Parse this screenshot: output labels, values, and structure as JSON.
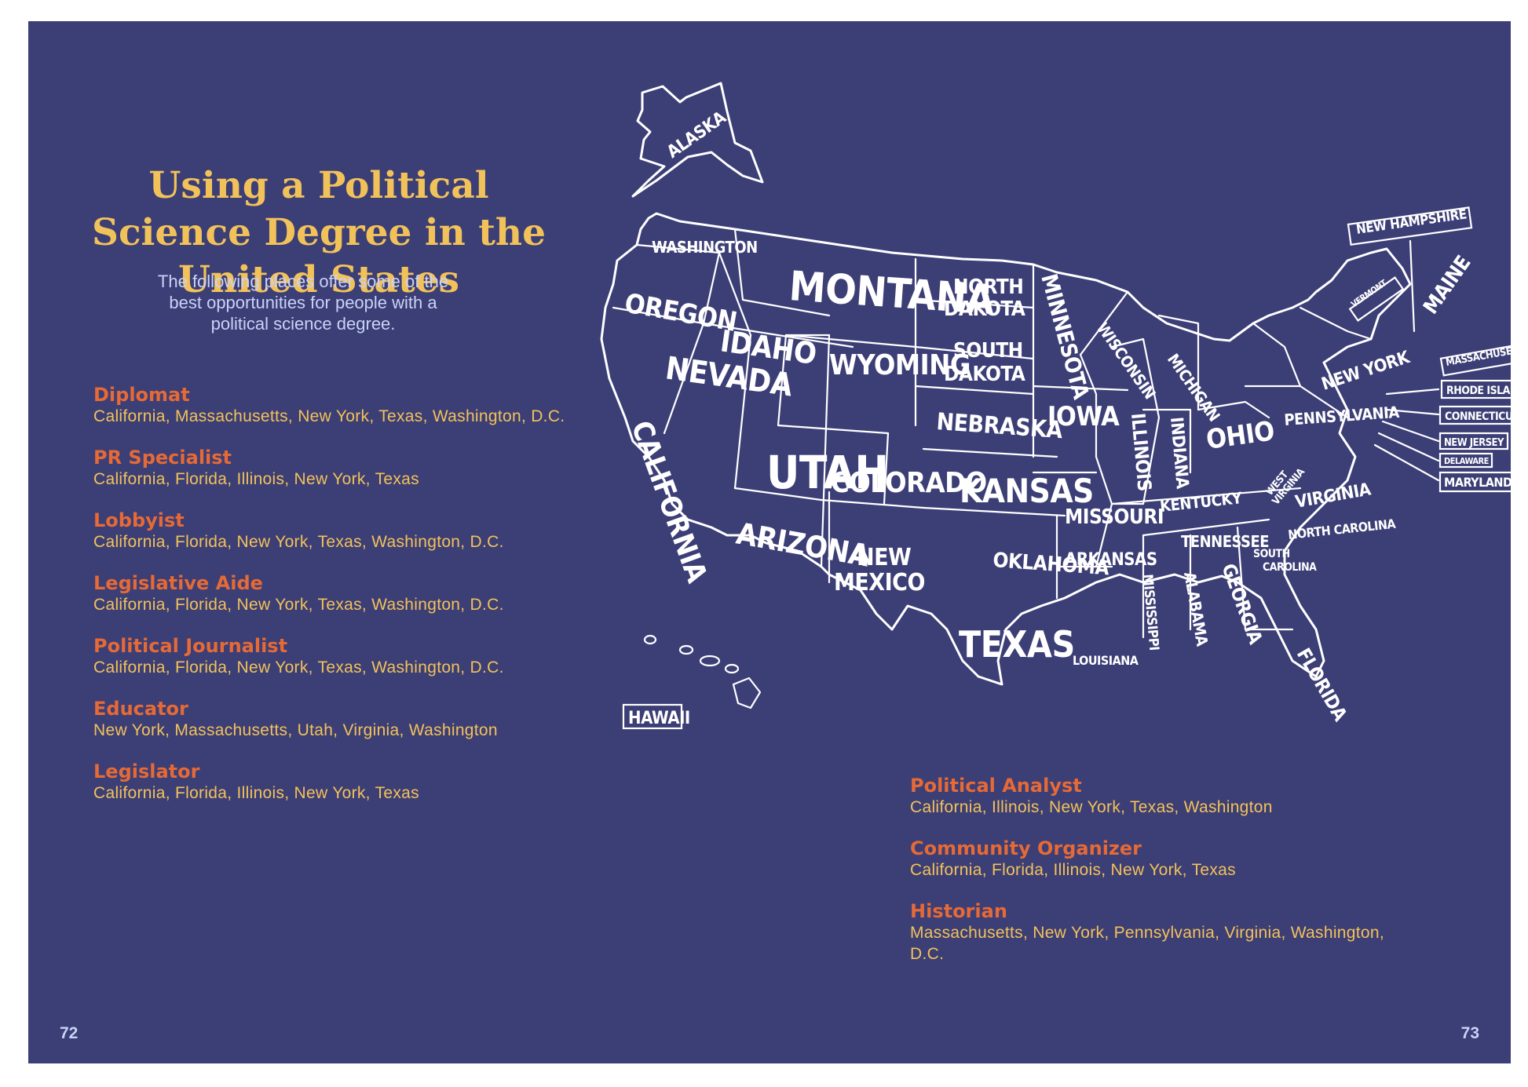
{
  "title": "Using a Political Science Degree in the United States",
  "subtitle": "The following places offer some of the best opportunities for people with a political science degree.",
  "jobs_left": [
    {
      "title": "Diplomat",
      "places": "California, Massachusetts, New York, Texas, Washington, D.C."
    },
    {
      "title": "PR Specialist",
      "places": "California, Florida, Illinois, New York, Texas"
    },
    {
      "title": "Lobbyist",
      "places": "California, Florida, New York, Texas, Washington, D.C."
    },
    {
      "title": "Legislative Aide",
      "places": "California, Florida, New York, Texas, Washington, D.C."
    },
    {
      "title": "Political Journalist",
      "places": "California, Florida, New York, Texas, Washington, D.C."
    },
    {
      "title": "Educator",
      "places": "New York, Massachusetts, Utah, Virginia, Washington"
    },
    {
      "title": "Legislator",
      "places": "California, Florida, Illinois, New York, Texas"
    }
  ],
  "jobs_right": [
    {
      "title": "Political Analyst",
      "places": "California, Illinois, New York, Texas, Washington"
    },
    {
      "title": "Community Organizer",
      "places": "California, Florida, Illinois, New York, Texas"
    },
    {
      "title": "Historian",
      "places": "Massachusetts, New York, Pennsylvania, Virginia, Washington, D.C."
    }
  ],
  "page_left": "72",
  "page_right": "73",
  "map": {
    "alaska": "ALASKA",
    "hawaii": "HAWAII",
    "washington": "WASHINGTON",
    "oregon": "OREGON",
    "california": "CALIFORNIA",
    "nevada": "NEVADA",
    "idaho": "IDAHO",
    "montana": "MONTANA",
    "wyoming": "WYOMING",
    "utah": "UTAH",
    "arizona": "ARIZONA",
    "colorado": "COLORADO",
    "new_mexico_1": "NEW",
    "new_mexico_2": "MEXICO",
    "north_dakota_1": "NORTH",
    "north_dakota_2": "DAKOTA",
    "south_dakota_1": "SOUTH",
    "south_dakota_2": "DAKOTA",
    "nebraska": "NEBRASKA",
    "kansas": "KANSAS",
    "oklahoma": "OKLAHOMA",
    "texas": "TEXAS",
    "minnesota": "MINNESOTA",
    "iowa": "IOWA",
    "missouri": "MISSOURI",
    "arkansas": "ARKANSAS",
    "louisiana": "LOUISIANA",
    "wisconsin": "WISCONSIN",
    "illinois": "ILLINOIS",
    "michigan": "MICHIGAN",
    "indiana": "INDIANA",
    "ohio": "OHIO",
    "kentucky": "KENTUCKY",
    "tennessee": "TENNESSEE",
    "mississippi": "MISSISSIPPI",
    "alabama": "ALABAMA",
    "georgia": "GEORGIA",
    "florida": "FLORIDA",
    "south_carolina_1": "SOUTH",
    "south_carolina_2": "CAROLINA",
    "north_carolina": "NORTH CAROLINA",
    "virginia": "VIRGINIA",
    "west_virginia_1": "WEST",
    "west_virginia_2": "VIRGINIA",
    "pennsylvania": "PENNSYLVANIA",
    "new_york": "NEW YORK",
    "vermont": "VERMONT",
    "new_hampshire": "NEW HAMPSHIRE",
    "maine": "MAINE",
    "massachusetts": "MASSACHUSETTS",
    "rhode_island": "RHODE ISLAND",
    "connecticut": "CONNECTICUT",
    "new_jersey": "NEW JERSEY",
    "delaware": "DELAWARE",
    "maryland": "MARYLAND"
  },
  "colors": {
    "background": "#3c3e76",
    "title": "#f2c25a",
    "job_title": "#e56a35",
    "job_places": "#f2c25a",
    "subtitle": "#c9d3f7",
    "map_lines": "#ffffff"
  }
}
